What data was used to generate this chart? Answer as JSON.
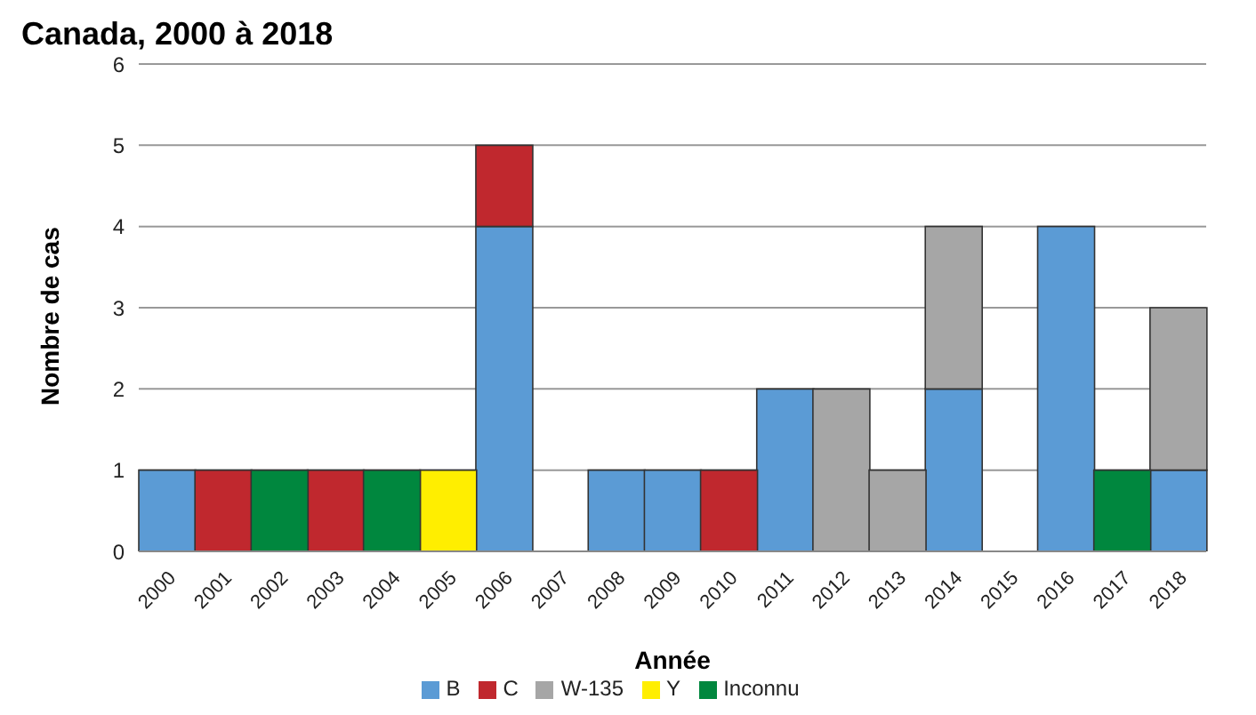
{
  "chart_data": {
    "type": "bar",
    "title": "Canada, 2000 à 2018",
    "xlabel": "Année",
    "ylabel": "Nombre de cas",
    "categories": [
      "2000",
      "2001",
      "2002",
      "2003",
      "2004",
      "2005",
      "2006",
      "2007",
      "2008",
      "2009",
      "2010",
      "2011",
      "2012",
      "2013",
      "2014",
      "2015",
      "2016",
      "2017",
      "2018"
    ],
    "series": [
      {
        "name": "B",
        "color": "#5b9bd5",
        "values": [
          1,
          null,
          null,
          null,
          null,
          null,
          4,
          null,
          1,
          1,
          null,
          2,
          null,
          null,
          2,
          null,
          4,
          null,
          1
        ]
      },
      {
        "name": "C",
        "color": "#c0282e",
        "values": [
          null,
          1,
          null,
          1,
          null,
          null,
          1,
          null,
          null,
          null,
          1,
          null,
          null,
          null,
          null,
          null,
          null,
          null,
          null
        ]
      },
      {
        "name": "W-135",
        "color": "#a6a6a6",
        "values": [
          null,
          null,
          null,
          null,
          null,
          null,
          null,
          null,
          null,
          null,
          null,
          null,
          2,
          1,
          2,
          null,
          null,
          null,
          2
        ]
      },
      {
        "name": "Y",
        "color": "#ffee00",
        "values": [
          null,
          null,
          null,
          null,
          null,
          1,
          null,
          null,
          null,
          null,
          null,
          null,
          null,
          null,
          null,
          null,
          null,
          null,
          null
        ]
      },
      {
        "name": "Inconnu",
        "color": "#00873e",
        "values": [
          null,
          null,
          1,
          null,
          1,
          null,
          null,
          null,
          null,
          null,
          null,
          null,
          null,
          null,
          null,
          null,
          null,
          1,
          null
        ]
      }
    ],
    "stacked": true,
    "ylim": [
      0,
      6
    ],
    "yticks": [
      0,
      1,
      2,
      3,
      4,
      5,
      6
    ],
    "grid": "y",
    "legend": "bottom"
  }
}
